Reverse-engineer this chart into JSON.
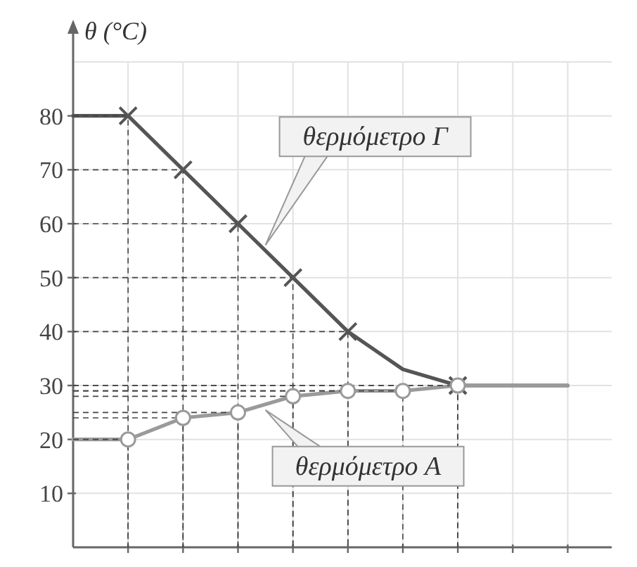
{
  "chart_data": {
    "type": "line",
    "ylabel": "θ (°C)",
    "ylim": [
      0,
      90
    ],
    "categories": [
      null,
      null,
      null,
      null,
      null,
      null,
      null,
      null,
      null,
      null
    ],
    "yticks": [
      10,
      20,
      30,
      40,
      50,
      60,
      70,
      80,
      {
        "value": 90,
        "label": null
      }
    ],
    "tick_labels": "y",
    "grid": true,
    "line_style": "solid",
    "marker": "none",
    "series": [
      {
        "name": "θερμόμετρο Γ",
        "color": "#555555",
        "values": [
          80,
          80,
          70,
          60,
          50,
          40,
          33,
          30,
          30,
          30
        ]
      },
      {
        "type": "scatter",
        "marker": "cross",
        "color": "#555555",
        "values": [
          null,
          80,
          70,
          60,
          50,
          40,
          null,
          30,
          null,
          null
        ]
      },
      {
        "name": "θερμόμετρο A",
        "color": "#9a9a9a",
        "values": [
          20,
          20,
          24,
          25,
          28,
          29,
          29,
          30,
          30,
          30
        ]
      },
      {
        "type": "scatter",
        "marker": "circle",
        "color": "#9a9a9a",
        "values": [
          null,
          20,
          24,
          25,
          28,
          29,
          29,
          30,
          null,
          null
        ]
      }
    ]
  }
}
